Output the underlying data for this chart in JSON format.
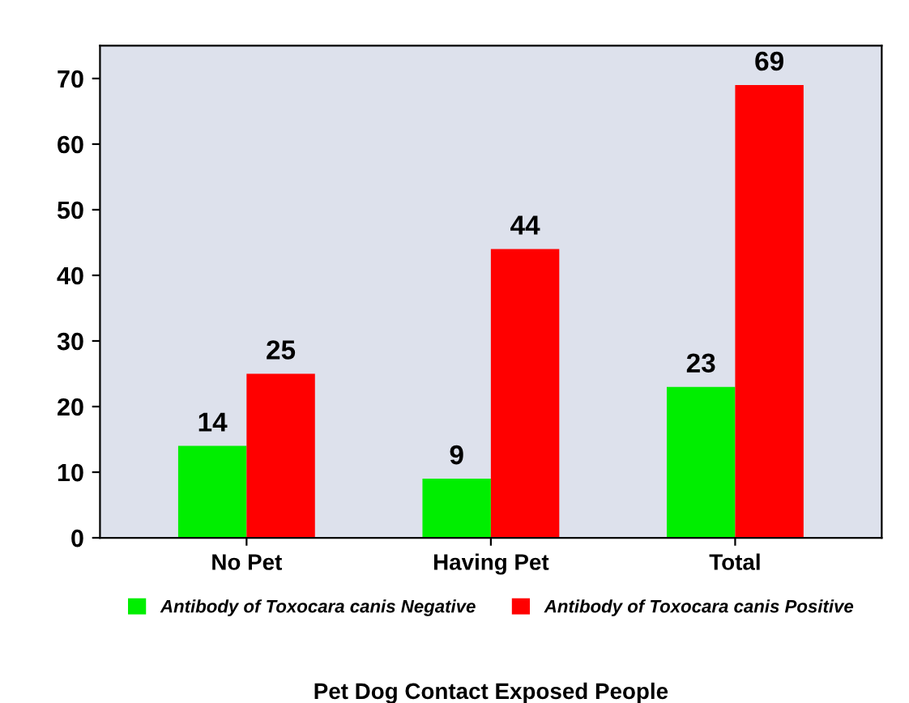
{
  "chart_data": {
    "type": "bar",
    "xlabel": "Pet Dog Contact Exposed People",
    "categories": [
      "No Pet",
      "Having Pet",
      "Total"
    ],
    "series": [
      {
        "name": "Antibody of Toxocara canis Negative",
        "color": "#00ee00",
        "values": [
          14,
          9,
          23
        ]
      },
      {
        "name": "Antibody of Toxocara canis Positive",
        "color": "#ff0000",
        "values": [
          25,
          44,
          69
        ]
      }
    ],
    "ylim": [
      0,
      75
    ],
    "yticks": [
      0,
      10,
      20,
      30,
      40,
      50,
      60,
      70
    ],
    "data_labels": true,
    "legend": "bottom",
    "grid": false
  }
}
